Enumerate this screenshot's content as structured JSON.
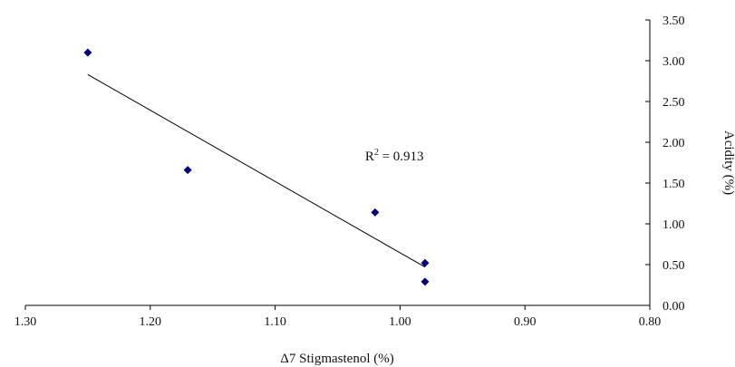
{
  "chart_data": {
    "type": "scatter",
    "title": "",
    "xlabel": "Δ7 Stigmastenol (%)",
    "ylabel": "Acidity (%)",
    "x_reversed": true,
    "xlim": [
      0.8,
      1.3
    ],
    "ylim": [
      0.0,
      3.5
    ],
    "x_ticks": [
      "1.30",
      "1.20",
      "1.10",
      "1.00",
      "0.90",
      "0.80"
    ],
    "y_ticks": [
      "0.00",
      "0.50",
      "1.00",
      "1.50",
      "2.00",
      "2.50",
      "3.00",
      "3.50"
    ],
    "y_axis_position": "right",
    "grid": false,
    "legend": "none",
    "marker": "diamond",
    "marker_color": "#000080",
    "series": [
      {
        "points": [
          {
            "x": 1.25,
            "y": 3.1
          },
          {
            "x": 1.17,
            "y": 1.66
          },
          {
            "x": 1.02,
            "y": 1.14
          },
          {
            "x": 0.98,
            "y": 0.52
          },
          {
            "x": 0.98,
            "y": 0.29
          }
        ]
      }
    ],
    "trendline": {
      "type": "linear",
      "color": "#000000",
      "from": {
        "x": 1.25,
        "y": 2.83
      },
      "to": {
        "x": 0.98,
        "y": 0.47
      }
    },
    "annotation": {
      "prefix": "R",
      "superscript": "2",
      "suffix": " = 0.913",
      "at": {
        "x": 1.028,
        "y": 1.78
      }
    }
  }
}
